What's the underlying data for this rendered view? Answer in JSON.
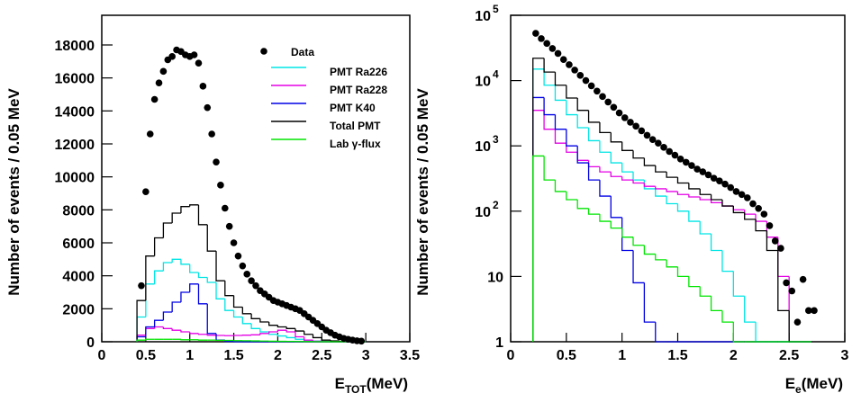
{
  "chart_data": [
    {
      "type": "histogram",
      "y_label": "Number of events / 0.05 MeV",
      "x_label": "E",
      "x_label_sub": "TOT",
      "x_label_unit": "(MeV)",
      "xlim": [
        0,
        3.5
      ],
      "xticks": [
        0,
        0.5,
        1,
        1.5,
        2,
        2.5,
        3,
        3.5
      ],
      "ylim": [
        0,
        19800
      ],
      "yticks": [
        0,
        2000,
        4000,
        6000,
        8000,
        10000,
        12000,
        14000,
        16000,
        18000
      ],
      "log_y": false,
      "legend": "top-right",
      "points": {
        "name": "Data",
        "color": "#000000",
        "x": [
          0.45,
          0.5,
          0.55,
          0.6,
          0.65,
          0.7,
          0.75,
          0.8,
          0.85,
          0.9,
          0.95,
          1.0,
          1.05,
          1.1,
          1.15,
          1.2,
          1.25,
          1.3,
          1.35,
          1.4,
          1.45,
          1.5,
          1.55,
          1.6,
          1.65,
          1.7,
          1.75,
          1.8,
          1.85,
          1.9,
          1.95,
          2.0,
          2.05,
          2.1,
          2.15,
          2.2,
          2.25,
          2.3,
          2.35,
          2.4,
          2.45,
          2.5,
          2.55,
          2.6,
          2.65,
          2.7,
          2.75,
          2.8,
          2.85,
          2.9,
          2.95
        ],
        "values": [
          3400,
          9100,
          12600,
          14700,
          15700,
          16400,
          17100,
          17300,
          17700,
          17600,
          17400,
          17300,
          17400,
          16900,
          15500,
          14200,
          12600,
          10900,
          9500,
          8100,
          7000,
          6000,
          5200,
          4600,
          4100,
          3700,
          3400,
          3100,
          2900,
          2700,
          2500,
          2400,
          2300,
          2200,
          2100,
          2000,
          1900,
          1700,
          1500,
          1300,
          1100,
          900,
          700,
          550,
          400,
          300,
          200,
          150,
          100,
          60,
          40
        ]
      },
      "bins": [
        0.4,
        0.5,
        0.6,
        0.7,
        0.8,
        0.9,
        1.0,
        1.1,
        1.2,
        1.3,
        1.4,
        1.5,
        1.6,
        1.7,
        1.8,
        1.9,
        2.0,
        2.1,
        2.2,
        2.3,
        2.4,
        2.5,
        2.6,
        2.7,
        2.8,
        2.9,
        3.0
      ],
      "series": [
        {
          "name": "PMT Ra226",
          "color": "#00e5e5",
          "values": [
            1500,
            3500,
            4300,
            4800,
            5000,
            4700,
            4200,
            3900,
            3600,
            2600,
            1900,
            1500,
            1100,
            800,
            600,
            450,
            350,
            250,
            150,
            80,
            40,
            20,
            10,
            5,
            0,
            0
          ]
        },
        {
          "name": "PMT Ra228",
          "color": "#e500e5",
          "values": [
            400,
            800,
            900,
            800,
            700,
            600,
            500,
            450,
            400,
            380,
            370,
            380,
            400,
            420,
            500,
            600,
            700,
            600,
            300,
            100,
            30,
            10,
            5,
            0,
            0,
            0
          ]
        },
        {
          "name": "PMT K40",
          "color": "#0000e5",
          "values": [
            300,
            900,
            1300,
            1800,
            2400,
            3000,
            3500,
            2300,
            500,
            100,
            20,
            0,
            0,
            0,
            0,
            0,
            0,
            0,
            0,
            0,
            0,
            0,
            0,
            0,
            0,
            0
          ]
        },
        {
          "name": "Total PMT",
          "color": "#000000",
          "values": [
            2500,
            5200,
            6300,
            7200,
            7800,
            8200,
            8300,
            7100,
            5500,
            3700,
            2800,
            2100,
            1700,
            1400,
            1200,
            1000,
            900,
            800,
            650,
            450,
            250,
            100,
            50,
            20,
            10,
            0
          ]
        },
        {
          "name": "Lab γ-flux",
          "color": "#00e500",
          "values": [
            100,
            150,
            150,
            150,
            150,
            120,
            120,
            100,
            100,
            90,
            80,
            70,
            60,
            50,
            40,
            30,
            25,
            20,
            15,
            10,
            5,
            3,
            2,
            1,
            0,
            0
          ]
        }
      ]
    },
    {
      "type": "histogram",
      "y_label": "Number of events / 0.05 MeV",
      "x_label": "E",
      "x_label_sub": "e",
      "x_label_unit": "(MeV)",
      "xlim": [
        0,
        3
      ],
      "xticks": [
        0,
        0.5,
        1,
        1.5,
        2,
        2.5,
        3
      ],
      "ylim": [
        1,
        100000
      ],
      "yticks": [
        1,
        10,
        {
          "value": 100,
          "label": "10",
          "sup": "2"
        },
        {
          "value": 1000,
          "label": "10",
          "sup": "3"
        },
        {
          "value": 10000,
          "label": "10",
          "sup": "4"
        },
        {
          "value": 100000,
          "label": "10",
          "sup": "5"
        }
      ],
      "log_y": true,
      "points": {
        "color": "#000000",
        "x": [
          0.225,
          0.275,
          0.325,
          0.375,
          0.425,
          0.475,
          0.525,
          0.575,
          0.625,
          0.675,
          0.725,
          0.775,
          0.825,
          0.875,
          0.925,
          0.975,
          1.025,
          1.075,
          1.125,
          1.175,
          1.225,
          1.275,
          1.325,
          1.375,
          1.425,
          1.475,
          1.525,
          1.575,
          1.625,
          1.675,
          1.725,
          1.775,
          1.825,
          1.875,
          1.925,
          1.975,
          2.025,
          2.075,
          2.125,
          2.175,
          2.225,
          2.275,
          2.325,
          2.375,
          2.425,
          2.475,
          2.525,
          2.575,
          2.625,
          2.675,
          2.725
        ],
        "values": [
          53000,
          44000,
          37000,
          31000,
          26000,
          21000,
          17500,
          14500,
          12000,
          10000,
          8300,
          6900,
          5700,
          4700,
          3900,
          3200,
          2700,
          2300,
          2000,
          1700,
          1450,
          1250,
          1100,
          950,
          820,
          720,
          630,
          560,
          500,
          440,
          400,
          360,
          320,
          290,
          260,
          230,
          200,
          180,
          160,
          130,
          110,
          90,
          60,
          35,
          27,
          8,
          6,
          2,
          9,
          3,
          3
        ]
      },
      "bins": [
        0.2,
        0.3,
        0.4,
        0.5,
        0.6,
        0.7,
        0.8,
        0.9,
        1.0,
        1.1,
        1.2,
        1.3,
        1.4,
        1.5,
        1.6,
        1.7,
        1.8,
        1.9,
        2.0,
        2.1,
        2.2,
        2.3,
        2.4,
        2.5,
        2.6,
        2.7
      ],
      "series": [
        {
          "color": "#00e5e5",
          "values": [
            15000,
            8500,
            5000,
            3000,
            1900,
            1200,
            800,
            550,
            400,
            300,
            220,
            170,
            130,
            100,
            70,
            45,
            25,
            12,
            5,
            2,
            1,
            0,
            0,
            0,
            0
          ]
        },
        {
          "color": "#e500e5",
          "values": [
            3500,
            1800,
            1100,
            800,
            600,
            480,
            400,
            340,
            300,
            270,
            240,
            220,
            200,
            180,
            165,
            150,
            135,
            120,
            105,
            90,
            70,
            40,
            10,
            1,
            0
          ]
        },
        {
          "color": "#0000e5",
          "values": [
            5500,
            3000,
            1800,
            1000,
            550,
            300,
            170,
            80,
            25,
            8,
            2,
            1,
            0,
            0,
            0,
            0,
            0,
            0,
            0,
            0,
            0,
            0,
            0,
            0,
            0
          ]
        },
        {
          "color": "#000000",
          "values": [
            22000,
            13500,
            8500,
            5400,
            3500,
            2300,
            1600,
            1150,
            850,
            650,
            500,
            400,
            330,
            270,
            220,
            180,
            150,
            120,
            95,
            75,
            50,
            25,
            3,
            1,
            0
          ]
        },
        {
          "color": "#00e500",
          "values": [
            700,
            300,
            200,
            150,
            110,
            90,
            70,
            55,
            40,
            30,
            22,
            18,
            14,
            10,
            7,
            5,
            3,
            2,
            1,
            0,
            0,
            0,
            0,
            0,
            0
          ]
        }
      ]
    }
  ]
}
